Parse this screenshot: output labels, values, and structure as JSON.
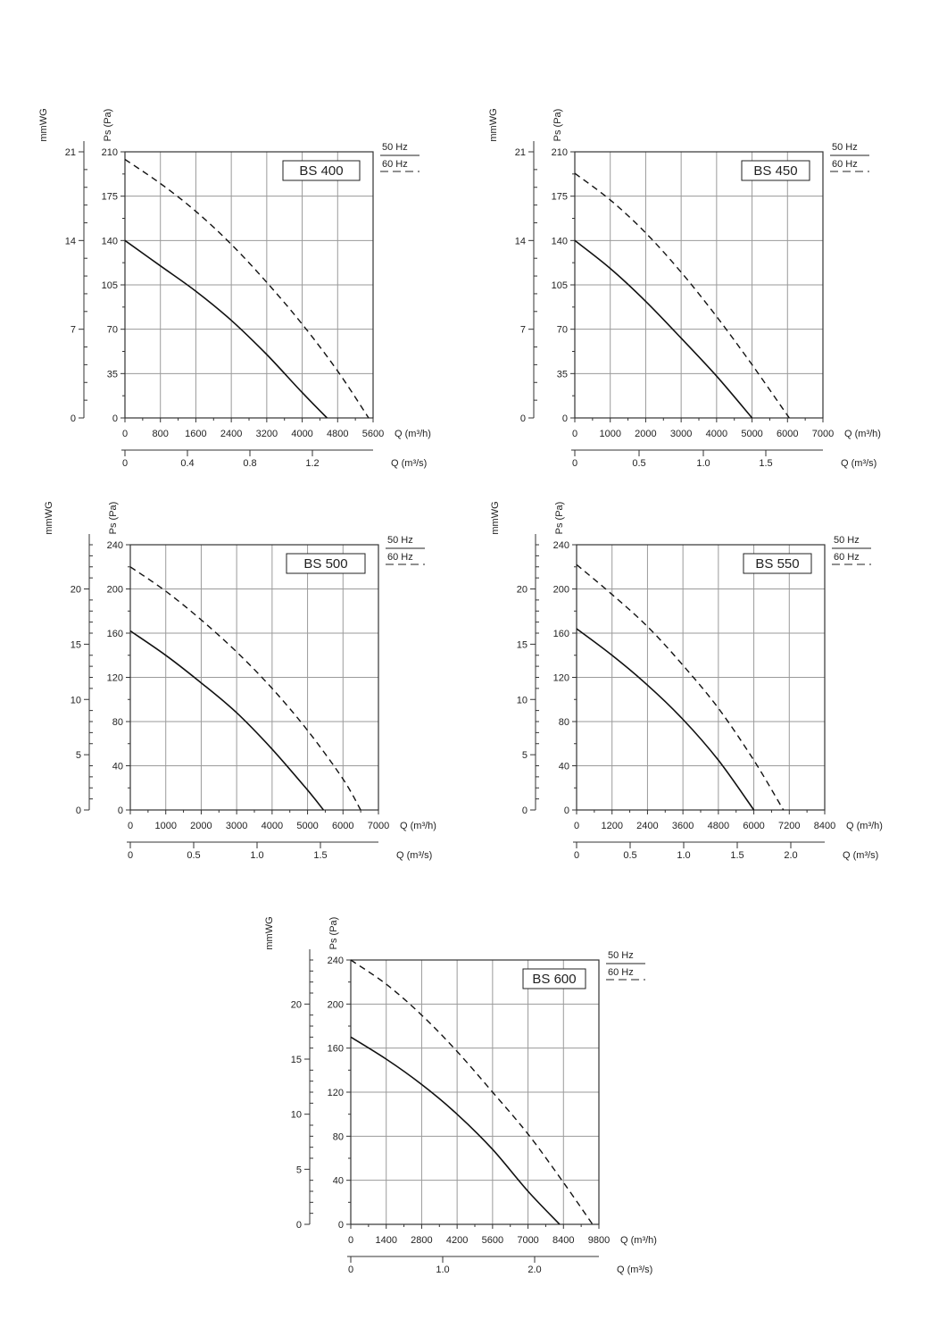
{
  "chart_data": [
    {
      "type": "line",
      "title": "BS 400",
      "ylabel_pa": "Ps (Pa)",
      "ylabel_mmwg": "mmWG",
      "xlabel_m3h": "Q (m³/h)",
      "xlabel_m3s": "Q (m³/s)",
      "ylim": [
        0,
        210
      ],
      "xlim": [
        0,
        5600
      ],
      "y_ticks": [
        "0",
        "35",
        "70",
        "105",
        "140",
        "175",
        "210"
      ],
      "mmwg_ticks": [
        "0",
        "7",
        "14",
        "21"
      ],
      "x_ticks": [
        "0",
        "800",
        "1600",
        "2400",
        "3200",
        "4000",
        "4800",
        "5600"
      ],
      "m3s_ticks": [
        "0",
        "0.4",
        "0.8",
        "1.2"
      ],
      "legend": [
        "50 Hz",
        "60 Hz"
      ],
      "series": [
        {
          "name": "50 Hz",
          "x": [
            0,
            800,
            1600,
            2400,
            3200,
            4000,
            4560
          ],
          "y": [
            140,
            120,
            100,
            77,
            50,
            20,
            0
          ]
        },
        {
          "name": "60 Hz",
          "x": [
            0,
            800,
            1600,
            2400,
            3200,
            4000,
            4800,
            5500
          ],
          "y": [
            204,
            185,
            163,
            137,
            107,
            74,
            37,
            0
          ]
        }
      ]
    },
    {
      "type": "line",
      "title": "BS 450",
      "ylabel_pa": "Ps (Pa)",
      "ylabel_mmwg": "mmWG",
      "xlabel_m3h": "Q (m³/h)",
      "xlabel_m3s": "Q (m³/s)",
      "ylim": [
        0,
        210
      ],
      "xlim": [
        0,
        7000
      ],
      "y_ticks": [
        "0",
        "35",
        "70",
        "105",
        "140",
        "175",
        "210"
      ],
      "mmwg_ticks": [
        "0",
        "7",
        "14",
        "21"
      ],
      "x_ticks": [
        "0",
        "1000",
        "2000",
        "3000",
        "4000",
        "5000",
        "6000",
        "7000"
      ],
      "m3s_ticks": [
        "0",
        "0.5",
        "1.0",
        "1.5"
      ],
      "legend": [
        "50 Hz",
        "60 Hz"
      ],
      "series": [
        {
          "name": "50 Hz",
          "x": [
            0,
            1000,
            2000,
            3000,
            4000,
            5000
          ],
          "y": [
            140,
            118,
            92,
            63,
            33,
            0
          ]
        },
        {
          "name": "60 Hz",
          "x": [
            0,
            1000,
            2000,
            3000,
            4000,
            5000,
            6050
          ],
          "y": [
            193,
            172,
            146,
            115,
            80,
            42,
            0
          ]
        }
      ]
    },
    {
      "type": "line",
      "title": "BS 500",
      "ylabel_pa": "Ps (Pa)",
      "ylabel_mmwg": "mmWG",
      "xlabel_m3h": "Q (m³/h)",
      "xlabel_m3s": "Q (m³/s)",
      "ylim": [
        0,
        240
      ],
      "xlim": [
        0,
        7000
      ],
      "y_ticks": [
        "0",
        "40",
        "80",
        "120",
        "160",
        "200",
        "240"
      ],
      "mmwg_ticks": [
        "0",
        "5",
        "10",
        "15",
        "20"
      ],
      "x_ticks": [
        "0",
        "1000",
        "2000",
        "3000",
        "4000",
        "5000",
        "6000",
        "7000"
      ],
      "m3s_ticks": [
        "0",
        "0.5",
        "1.0",
        "1.5"
      ],
      "legend": [
        "50 Hz",
        "60 Hz"
      ],
      "series": [
        {
          "name": "50 Hz",
          "x": [
            0,
            1000,
            2000,
            3000,
            4000,
            5000,
            5450
          ],
          "y": [
            162,
            140,
            115,
            88,
            55,
            18,
            0
          ]
        },
        {
          "name": "60 Hz",
          "x": [
            0,
            1000,
            2000,
            3000,
            4000,
            5000,
            6000,
            6500
          ],
          "y": [
            220,
            198,
            172,
            143,
            110,
            72,
            28,
            0
          ]
        }
      ]
    },
    {
      "type": "line",
      "title": "BS 550",
      "ylabel_pa": "Ps (Pa)",
      "ylabel_mmwg": "mmWG",
      "xlabel_m3h": "Q (m³/h)",
      "xlabel_m3s": "Q (m³/s)",
      "ylim": [
        0,
        240
      ],
      "xlim": [
        0,
        8400
      ],
      "y_ticks": [
        "0",
        "40",
        "80",
        "120",
        "160",
        "200",
        "240"
      ],
      "mmwg_ticks": [
        "0",
        "5",
        "10",
        "15",
        "20"
      ],
      "x_ticks": [
        "0",
        "1200",
        "2400",
        "3600",
        "4800",
        "6000",
        "7200",
        "8400"
      ],
      "m3s_ticks": [
        "0",
        "0.5",
        "1.0",
        "1.5",
        "2.0"
      ],
      "legend": [
        "50 Hz",
        "60 Hz"
      ],
      "series": [
        {
          "name": "50 Hz",
          "x": [
            0,
            1200,
            2400,
            3600,
            4800,
            6000
          ],
          "y": [
            164,
            140,
            113,
            82,
            45,
            0
          ]
        },
        {
          "name": "60 Hz",
          "x": [
            0,
            1200,
            2400,
            3600,
            4800,
            6000,
            7000
          ],
          "y": [
            222,
            195,
            166,
            131,
            92,
            45,
            0
          ]
        }
      ]
    },
    {
      "type": "line",
      "title": "BS 600",
      "ylabel_pa": "Ps (Pa)",
      "ylabel_mmwg": "mmWG",
      "xlabel_m3h": "Q (m³/h)",
      "xlabel_m3s": "Q (m³/s)",
      "ylim": [
        0,
        240
      ],
      "xlim": [
        0,
        9800
      ],
      "y_ticks": [
        "0",
        "40",
        "80",
        "120",
        "160",
        "200",
        "240"
      ],
      "mmwg_ticks": [
        "0",
        "5",
        "10",
        "15",
        "20"
      ],
      "x_ticks": [
        "0",
        "1400",
        "2800",
        "4200",
        "5600",
        "7000",
        "8400",
        "9800"
      ],
      "m3s_ticks": [
        "0",
        "1.0",
        "2.0"
      ],
      "legend": [
        "50 Hz",
        "60 Hz"
      ],
      "series": [
        {
          "name": "50 Hz",
          "x": [
            0,
            1400,
            2800,
            4200,
            5600,
            7000,
            8250
          ],
          "y": [
            170,
            150,
            127,
            100,
            68,
            30,
            0
          ]
        },
        {
          "name": "60 Hz",
          "x": [
            0,
            1400,
            2800,
            4200,
            5600,
            7000,
            8400,
            9550
          ],
          "y": [
            240,
            218,
            190,
            157,
            120,
            82,
            38,
            0
          ]
        }
      ]
    }
  ]
}
